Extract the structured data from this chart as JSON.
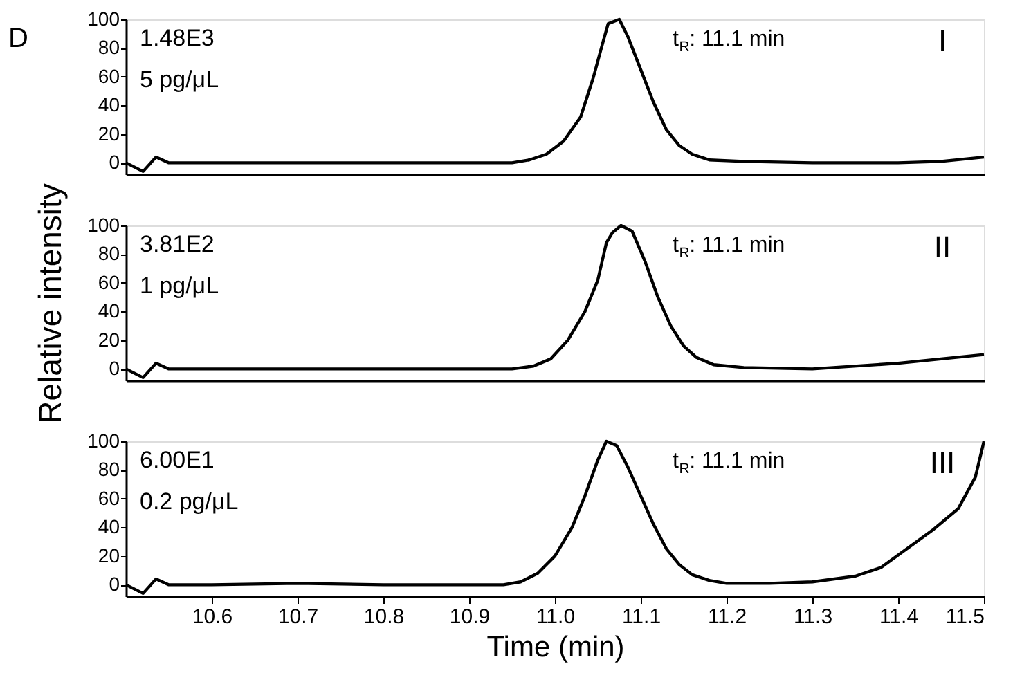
{
  "chart_data": [
    {
      "type": "line",
      "ylim": [
        -8,
        100
      ],
      "yticks": [
        0,
        20,
        40,
        60,
        80,
        100
      ],
      "xlim": [
        10.5,
        11.5
      ],
      "tick_labels": "y",
      "marker": "none",
      "line_style": "solid",
      "grid": false,
      "annotations": [
        "1.48E3",
        "5 pg/μL",
        "t$_{R}$: 11.1 min",
        "I",
        "D"
      ],
      "series": [
        {
          "color": "#000000",
          "x": [
            10.5,
            10.52,
            10.535,
            10.55,
            10.6,
            10.8,
            10.95,
            10.97,
            10.99,
            11.01,
            11.03,
            11.045,
            11.055,
            11.062,
            11.075,
            11.085,
            11.1,
            11.115,
            11.13,
            11.145,
            11.16,
            11.18,
            11.22,
            11.3,
            11.4,
            11.45,
            11.5
          ],
          "values": [
            0,
            -6,
            4,
            0,
            0,
            0,
            0,
            2,
            6,
            15,
            32,
            60,
            82,
            97,
            100,
            88,
            65,
            42,
            23,
            12,
            6,
            2,
            1,
            0,
            0,
            1,
            4
          ]
        }
      ]
    },
    {
      "type": "line",
      "ylim": [
        -8,
        100
      ],
      "yticks": [
        0,
        20,
        40,
        60,
        80,
        100
      ],
      "xlim": [
        10.5,
        11.5
      ],
      "tick_labels": "y",
      "marker": "none",
      "line_style": "solid",
      "grid": false,
      "ylabel": "Relative intensity",
      "annotations": [
        "3.81E2",
        "1 pg/μL",
        "t$_{R}$: 11.1 min",
        "II"
      ],
      "series": [
        {
          "color": "#000000",
          "x": [
            10.5,
            10.52,
            10.535,
            10.55,
            10.6,
            10.8,
            10.95,
            10.975,
            10.995,
            11.015,
            11.035,
            11.05,
            11.06,
            11.067,
            11.077,
            11.09,
            11.105,
            11.12,
            11.135,
            11.15,
            11.165,
            11.185,
            11.22,
            11.3,
            11.4,
            11.45,
            11.5
          ],
          "values": [
            0,
            -6,
            4,
            0,
            0,
            0,
            0,
            2,
            7,
            20,
            40,
            62,
            88,
            95,
            100,
            96,
            75,
            50,
            30,
            16,
            8,
            3,
            1,
            0,
            4,
            7,
            10
          ]
        }
      ]
    },
    {
      "type": "line",
      "ylim": [
        -8,
        100
      ],
      "yticks": [
        0,
        20,
        40,
        60,
        80,
        100
      ],
      "xlim": [
        10.5,
        11.5
      ],
      "xticks": [
        10.6,
        10.7,
        10.8,
        10.9,
        {
          "value": 11.0,
          "label": "11.0"
        },
        11.1,
        11.2,
        11.3,
        11.4,
        11.5
      ],
      "marker": "none",
      "line_style": "solid",
      "grid": false,
      "xlabel": "Time (min)",
      "annotations": [
        "6.00E1",
        "0.2 pg/μL",
        "t$_{R}$: 11.1 min",
        "III"
      ],
      "series": [
        {
          "color": "#000000",
          "x": [
            10.5,
            10.52,
            10.535,
            10.55,
            10.6,
            10.7,
            10.8,
            10.9,
            10.94,
            10.96,
            10.98,
            11.0,
            11.02,
            11.035,
            11.05,
            11.06,
            11.072,
            11.085,
            11.1,
            11.115,
            11.13,
            11.145,
            11.16,
            11.18,
            11.2,
            11.25,
            11.3,
            11.35,
            11.38,
            11.41,
            11.44,
            11.47,
            11.49,
            11.5
          ],
          "values": [
            0,
            -6,
            4,
            0,
            0,
            1,
            0,
            0,
            0,
            2,
            8,
            20,
            40,
            62,
            87,
            100,
            97,
            82,
            62,
            42,
            25,
            14,
            7,
            3,
            1,
            1,
            2,
            6,
            12,
            25,
            38,
            53,
            75,
            100
          ]
        }
      ]
    }
  ]
}
